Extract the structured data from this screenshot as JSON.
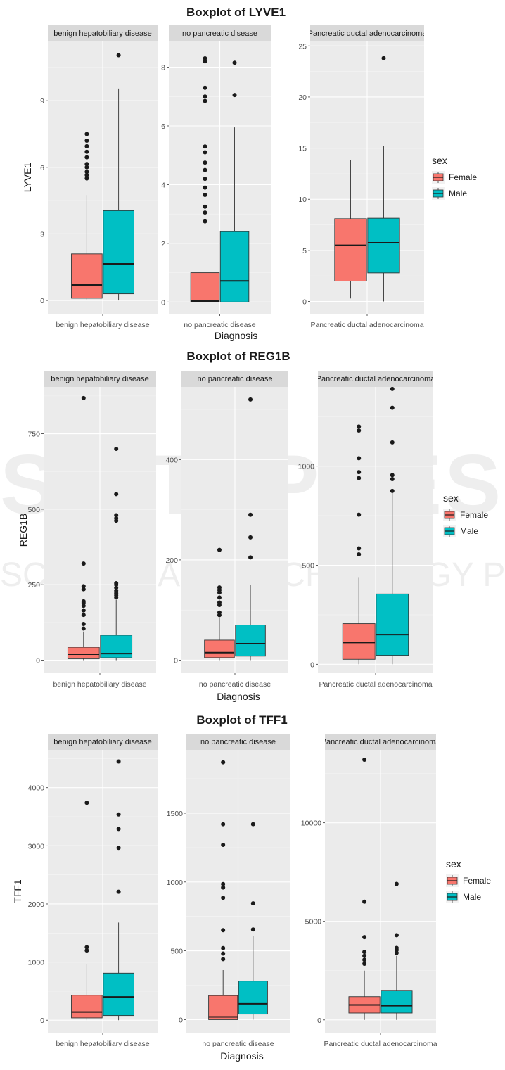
{
  "colors": {
    "female": "#F8766D",
    "male": "#00BFC4",
    "panel": "#EBEBEB",
    "strip": "#D9D9D9"
  },
  "watermark": {
    "line1": "SCITEPRESS",
    "line2": "SCIENCE AND TECHNOLOGY PUBLICATIONS"
  },
  "chart_data": [
    {
      "type": "boxplot",
      "title": "Boxplot of LYVE1",
      "xlabel": "Diagnosis",
      "ylabel": "LYVE1",
      "legend": {
        "title": "sex",
        "entries": [
          "Female",
          "Male"
        ],
        "placement": "right"
      },
      "facets": [
        {
          "strip": "benign hepatobiliary disease",
          "category": "benign hepatobiliary disease",
          "ylim": [
            -0.6,
            11.7
          ],
          "ticks": [
            0,
            3,
            6,
            9
          ],
          "boxes": [
            {
              "sex": "Female",
              "min": 0,
              "q1": 0.1,
              "median": 0.7,
              "q3": 2.1,
              "max": 4.75,
              "outliers": [
                5.5,
                5.65,
                5.8,
                6.0,
                6.15,
                6.45,
                6.7,
                6.95,
                7.2,
                7.5
              ]
            },
            {
              "sex": "Male",
              "min": 0,
              "q1": 0.3,
              "median": 1.65,
              "q3": 4.05,
              "max": 9.55,
              "outliers": [
                11.05
              ]
            }
          ]
        },
        {
          "strip": "no pancreatic disease",
          "category": "no pancreatic disease",
          "ylim": [
            -0.4,
            8.9
          ],
          "ticks": [
            0,
            2,
            4,
            6,
            8
          ],
          "boxes": [
            {
              "sex": "Female",
              "min": 0,
              "q1": 0,
              "median": 0.03,
              "q3": 1.0,
              "max": 2.4,
              "outliers": [
                2.75,
                3.05,
                3.25,
                3.65,
                3.9,
                4.2,
                4.5,
                4.75,
                5.1,
                5.3,
                6.85,
                7.0,
                7.3,
                8.2,
                8.3
              ]
            },
            {
              "sex": "Male",
              "min": 0,
              "q1": 0,
              "median": 0.72,
              "q3": 2.4,
              "max": 5.95,
              "outliers": [
                7.05,
                8.15
              ]
            }
          ]
        },
        {
          "strip": "Pancreatic ductal adenocarcinoma",
          "category": "Pancreatic ductal adenocarcinoma",
          "ylim": [
            -1.2,
            25.5
          ],
          "ticks": [
            0,
            5,
            10,
            15,
            20,
            25
          ],
          "boxes": [
            {
              "sex": "Female",
              "min": 0.3,
              "q1": 2.0,
              "median": 5.5,
              "q3": 8.1,
              "max": 13.8,
              "outliers": []
            },
            {
              "sex": "Male",
              "min": 0,
              "q1": 2.8,
              "median": 5.75,
              "q3": 8.15,
              "max": 15.2,
              "outliers": [
                23.8
              ]
            }
          ]
        }
      ]
    },
    {
      "type": "boxplot",
      "title": "Boxplot of REG1B",
      "xlabel": "Diagnosis",
      "ylabel": "REG1B",
      "legend": {
        "title": "sex",
        "entries": [
          "Female",
          "Male"
        ],
        "placement": "right"
      },
      "facets": [
        {
          "strip": "benign hepatobiliary disease",
          "category": "benign hepatobiliary disease",
          "ylim": [
            -43,
            905
          ],
          "ticks": [
            0,
            250,
            500,
            750
          ],
          "boxes": [
            {
              "sex": "Female",
              "min": 0,
              "q1": 5,
              "median": 20,
              "q3": 43,
              "max": 95,
              "outliers": [
                105,
                120,
                150,
                165,
                180,
                190,
                195,
                235,
                245,
                320,
                868
              ]
            },
            {
              "sex": "Male",
              "min": 0,
              "q1": 8,
              "median": 22,
              "q3": 83,
              "max": 200,
              "outliers": [
                208,
                215,
                222,
                230,
                240,
                250,
                255,
                462,
                470,
                480,
                550,
                700
              ]
            }
          ]
        },
        {
          "strip": "no pancreatic disease",
          "category": "no pancreatic disease",
          "ylim": [
            -26,
            545
          ],
          "ticks": [
            0,
            200,
            400
          ],
          "boxes": [
            {
              "sex": "Female",
              "min": 0,
              "q1": 5,
              "median": 15,
              "q3": 40,
              "max": 85,
              "outliers": [
                90,
                95,
                110,
                115,
                125,
                135,
                140,
                145,
                220
              ]
            },
            {
              "sex": "Male",
              "min": 0,
              "q1": 8,
              "median": 33,
              "q3": 70,
              "max": 150,
              "outliers": [
                205,
                245,
                290,
                520
              ]
            }
          ]
        },
        {
          "strip": "Pancreatic ductal adenocarcinoma",
          "category": "Pancreatic ductal adenocarcinoma",
          "ylim": [
            -45,
            1400
          ],
          "ticks": [
            0,
            500,
            1000
          ],
          "boxes": [
            {
              "sex": "Female",
              "min": 0,
              "q1": 25,
              "median": 110,
              "q3": 205,
              "max": 440,
              "outliers": [
                555,
                585,
                755,
                940,
                970,
                1040,
                1180,
                1200
              ]
            },
            {
              "sex": "Male",
              "min": 0,
              "q1": 45,
              "median": 150,
              "q3": 355,
              "max": 880,
              "outliers": [
                875,
                935,
                955,
                1120,
                1295,
                1390
              ]
            }
          ]
        }
      ]
    },
    {
      "type": "boxplot",
      "title": "Boxplot of TFF1",
      "xlabel": "Diagnosis",
      "ylabel": "TFF1",
      "legend": {
        "title": "sex",
        "entries": [
          "Female",
          "Male"
        ],
        "placement": "right"
      },
      "facets": [
        {
          "strip": "benign hepatobiliary disease",
          "category": "benign hepatobiliary disease",
          "ylim": [
            -215,
            4650
          ],
          "ticks": [
            0,
            1000,
            2000,
            3000,
            4000
          ],
          "boxes": [
            {
              "sex": "Female",
              "min": 0,
              "q1": 40,
              "median": 140,
              "q3": 430,
              "max": 970,
              "outliers": [
                1200,
                1255,
                3740
              ]
            },
            {
              "sex": "Male",
              "min": 0,
              "q1": 80,
              "median": 400,
              "q3": 810,
              "max": 1680,
              "outliers": [
                2210,
                2965,
                3290,
                3540,
                4450
              ]
            }
          ]
        },
        {
          "strip": "no pancreatic disease",
          "category": "no pancreatic disease",
          "ylim": [
            -95,
            1960
          ],
          "ticks": [
            0,
            500,
            1000,
            1500
          ],
          "boxes": [
            {
              "sex": "Female",
              "min": 0,
              "q1": 0,
              "median": 20,
              "q3": 175,
              "max": 360,
              "outliers": [
                440,
                480,
                520,
                650,
                885,
                960,
                985,
                1270,
                1420,
                1870
              ]
            },
            {
              "sex": "Male",
              "min": 0,
              "q1": 40,
              "median": 115,
              "q3": 280,
              "max": 610,
              "outliers": [
                655,
                845,
                1420
              ]
            }
          ]
        },
        {
          "strip": "Pancreatic ductal adenocarcinoma",
          "category": "Pancreatic ductal adenocarcinoma",
          "ylim": [
            -650,
            13700
          ],
          "ticks": [
            0,
            5000,
            10000
          ],
          "boxes": [
            {
              "sex": "Female",
              "min": 0,
              "q1": 350,
              "median": 760,
              "q3": 1180,
              "max": 2500,
              "outliers": [
                2850,
                3050,
                3250,
                3450,
                4200,
                6000,
                13200
              ]
            },
            {
              "sex": "Male",
              "min": 0,
              "q1": 350,
              "median": 720,
              "q3": 1500,
              "max": 3250,
              "outliers": [
                3400,
                3550,
                3650,
                4300,
                6900
              ]
            }
          ]
        }
      ]
    }
  ]
}
